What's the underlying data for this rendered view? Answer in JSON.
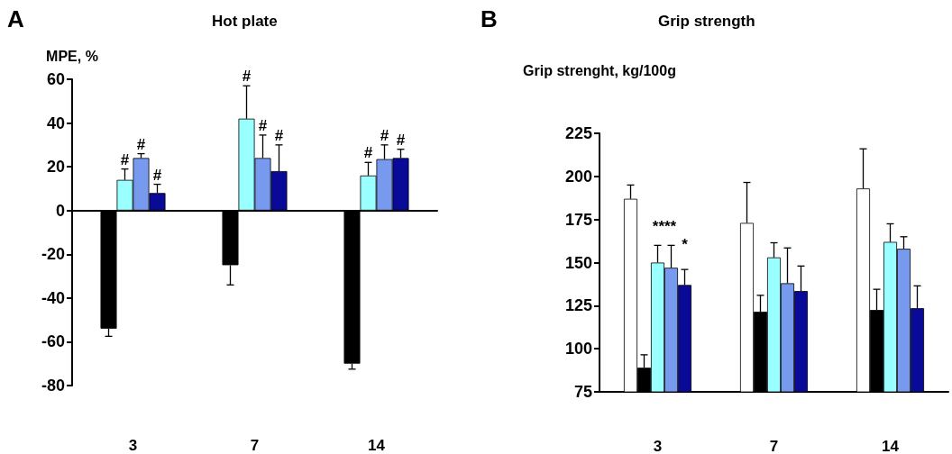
{
  "chart_data": [
    {
      "type": "bar",
      "title": "Hot plate",
      "ylabel": "MPE, %",
      "categories": [
        "3",
        "7",
        "14"
      ],
      "series": [
        {
          "color": "#000000",
          "values": [
            -54,
            -25,
            -70
          ],
          "errors": [
            [
              -57.5,
              -54
            ],
            [
              -34,
              -25
            ],
            [
              -72.5,
              -70
            ]
          ]
        },
        {
          "color": "#99ffff",
          "values": [
            14,
            42,
            16
          ],
          "errors": [
            [
              14,
              19
            ],
            [
              42,
              57
            ],
            [
              16,
              22
            ]
          ]
        },
        {
          "color": "#7799ee",
          "values": [
            24,
            24,
            23.5
          ],
          "errors": [
            [
              24,
              26
            ],
            [
              24,
              34.5
            ],
            [
              23.5,
              30
            ]
          ]
        },
        {
          "color": "#0a0a99",
          "values": [
            8,
            18,
            24
          ],
          "errors": [
            [
              8,
              12
            ],
            [
              18,
              30
            ],
            [
              24,
              28
            ]
          ]
        }
      ],
      "ylim": [
        -80,
        60
      ],
      "yticks": [
        -80,
        -60,
        -40,
        -20,
        0,
        20,
        40,
        60
      ],
      "annotations": [
        "A",
        {
          "text": "#",
          "x": "3",
          "y": 14
        },
        {
          "text": "#",
          "x": "3",
          "y": 24
        },
        {
          "text": "#",
          "x": "3",
          "y": 8
        },
        {
          "text": "#",
          "x": "7",
          "y": 42
        },
        {
          "text": "#",
          "x": "7",
          "y": 24
        },
        {
          "text": "#",
          "x": "7",
          "y": 18
        },
        {
          "text": "#",
          "x": "14",
          "y": 16
        },
        {
          "text": "#",
          "x": "14",
          "y": 23.5
        },
        {
          "text": "#",
          "x": "14",
          "y": 24
        }
      ]
    },
    {
      "type": "bar",
      "title": "Grip strength",
      "ylabel": "Grip strenght, kg/100g",
      "categories": [
        "3",
        "7",
        "14"
      ],
      "series": [
        {
          "color": "#ffffff",
          "values": [
            187,
            173,
            193
          ],
          "errors": [
            [
              187,
              195
            ],
            [
              173,
              196.5
            ],
            [
              193,
              216
            ]
          ]
        },
        {
          "color": "#000000",
          "values": [
            89,
            121.5,
            122.5
          ],
          "errors": [
            [
              89,
              96.5
            ],
            [
              121.5,
              131
            ],
            [
              122.5,
              134.5
            ]
          ]
        },
        {
          "color": "#99ffff",
          "values": [
            150,
            153,
            162
          ],
          "errors": [
            [
              150,
              160
            ],
            [
              153,
              161.5
            ],
            [
              162,
              172.5
            ]
          ]
        },
        {
          "color": "#7799ee",
          "values": [
            147,
            138,
            158
          ],
          "errors": [
            [
              147,
              160
            ],
            [
              138,
              158.5
            ],
            [
              158,
              165
            ]
          ]
        },
        {
          "color": "#0a0a99",
          "values": [
            137,
            133.5,
            123.5
          ],
          "errors": [
            [
              137,
              146
            ],
            [
              133.5,
              148
            ],
            [
              123.5,
              136.5
            ]
          ]
        }
      ],
      "ylim": [
        75,
        225
      ],
      "yticks": [
        75,
        100,
        125,
        150,
        175,
        200,
        225
      ],
      "annotations": [
        "B",
        {
          "text": "****",
          "x": "3",
          "y": 150
        },
        "*"
      ]
    }
  ]
}
